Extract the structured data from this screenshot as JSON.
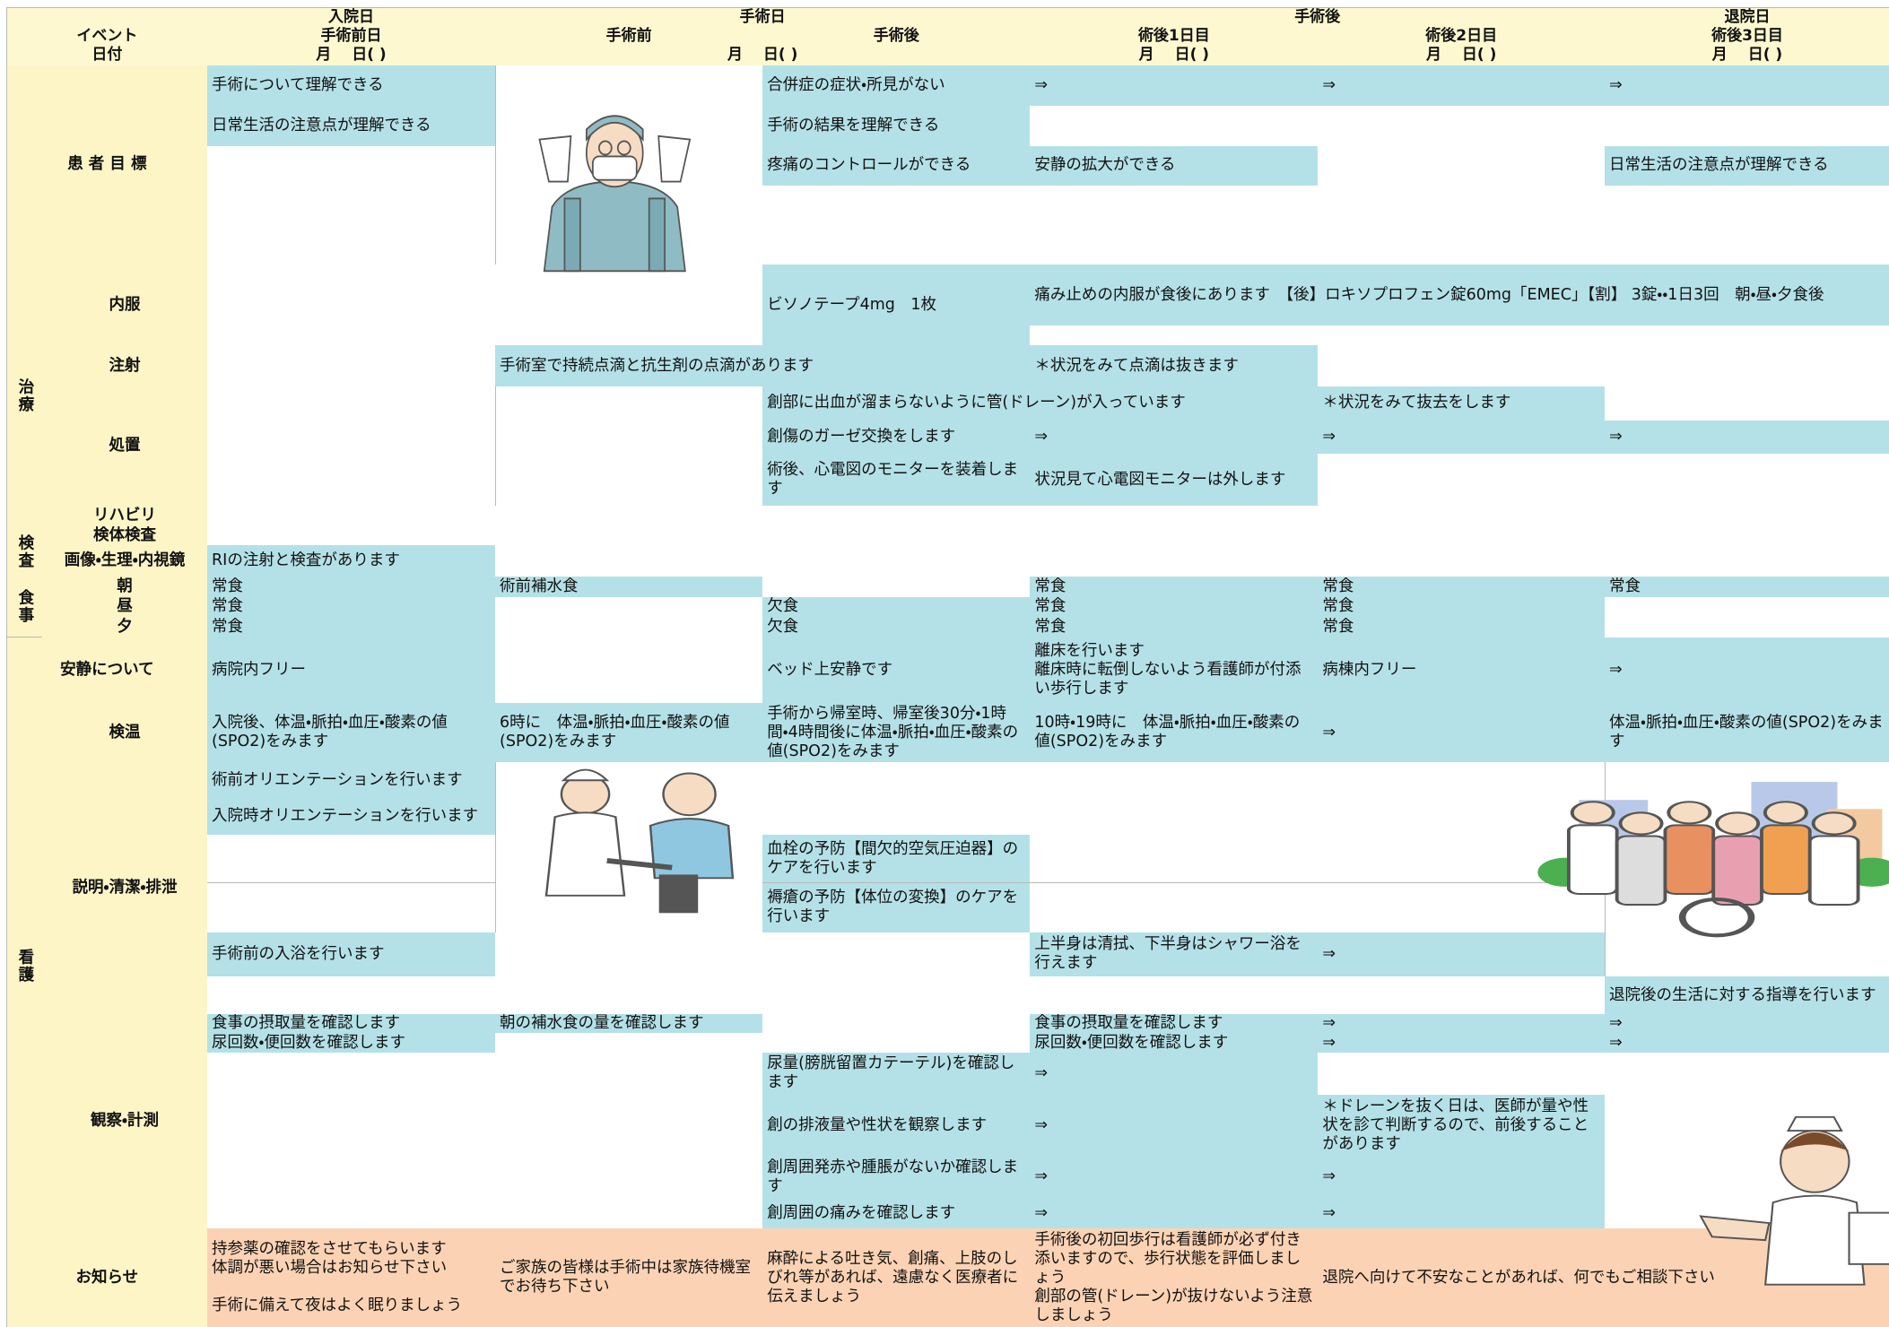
{
  "header": {
    "phases": [
      "入院日",
      "手術日",
      "手術後",
      "退院日"
    ],
    "event_label": "イベント",
    "days": [
      "手術前日",
      "手術前",
      "手術後",
      "術後1日目",
      "術後2日目",
      "術後3日目"
    ],
    "date_label": "日付",
    "dates": [
      "月　 日( )",
      "月　 日( )",
      "月　 日( )",
      "月　 日( )",
      "月　 日( )"
    ]
  },
  "goals": {
    "label": "患 者 目 標",
    "items": [
      "手術について理解できる",
      "日常生活の注意点が理解できる",
      "合併症の症状・所見がない",
      "⇒",
      "⇒",
      "⇒",
      "手術の結果を理解できる",
      "疼痛のコントロールができる",
      "安静の拡大ができる",
      "日常生活の注意点が理解できる"
    ]
  },
  "treatment": {
    "label": "治療",
    "oral": {
      "label": "内服",
      "items": [
        "ビソノテープ4mg　1枚",
        "痛み止めの内服が食後にあります　【後】ロキソプロフェン錠60mg「EMEC」【割】 3錠・・1日3回　朝・昼・夕食後"
      ]
    },
    "injection": {
      "label": "注射",
      "items": [
        "手術室で持続点滴と抗生剤の点滴があります",
        "＊状況をみて点滴は抜きます"
      ]
    },
    "procedure": {
      "label": "処置",
      "items": [
        "創部に出血が溜まらないように管(ドレーン)が入っています",
        "＊状況をみて抜去をします",
        "創傷のガーゼ交換をします",
        "⇒",
        "⇒",
        "⇒",
        "術後、心電図のモニターを装着します",
        "状況見て心電図モニターは外します"
      ]
    },
    "rehab": {
      "label": "リハビリ"
    }
  },
  "exam": {
    "label": "検査",
    "specimen": {
      "label": "検体検査"
    },
    "imaging": {
      "label": "画像・生理・内視鏡",
      "items": [
        "RIの注射と検査があります"
      ]
    }
  },
  "meals": {
    "label": "食事",
    "rows": [
      {
        "label": "朝",
        "items": [
          "常食",
          "術前補水食",
          "常食",
          "常食",
          "常食"
        ]
      },
      {
        "label": "昼",
        "items": [
          "常食",
          "欠食",
          "常食",
          "常食"
        ]
      },
      {
        "label": "夕",
        "items": [
          "常食",
          "欠食",
          "常食",
          "常食"
        ]
      }
    ]
  },
  "rest": {
    "label": "安静について",
    "items": [
      "病院内フリー",
      "ベッド上安静です",
      "離床を行います\n離床時に転倒しないよう看護師が付添い歩行します",
      "病棟内フリー",
      "⇒"
    ]
  },
  "nursing": {
    "label": "看護",
    "vitals": {
      "label": "検温",
      "items": [
        "入院後、体温・脈拍・血圧・酸素の値(SPO2)をみます",
        "6時に　体温・脈拍・血圧・酸素の値(SPO2)をみます",
        "手術から帰室時、帰室後30分・1時間・4時間後に体温・脈拍・血圧・酸素の値(SPO2)をみます",
        "10時・19時に　体温・脈拍・血圧・酸素の値(SPO2)をみます",
        "⇒",
        "体温・脈拍・血圧・酸素の値(SPO2)をみます"
      ]
    },
    "explain": {
      "label": "説明・清潔・排泄",
      "items": [
        "術前オリエンテーションを行います",
        "入院時オリエンテーションを行います",
        "血栓の予防【間欠的空気圧迫器】のケアを行います",
        "褥瘡の予防【体位の変換】のケアを行います",
        "手術前の入浴を行います",
        "上半身は清拭、下半身はシャワー浴を行えます",
        "⇒",
        "退院後の生活に対する指導を行います"
      ]
    },
    "observe": {
      "label": "観察・計測",
      "items": [
        "食事の摂取量を確認します",
        "朝の補水食の量を確認します",
        "食事の摂取量を確認します",
        "⇒",
        "⇒",
        "尿回数・便回数を確認します",
        "尿回数・便回数を確認します",
        "⇒",
        "⇒",
        "尿量(膀胱留置カテーテル)を確認します",
        "⇒",
        "創の排液量や性状を観察します",
        "⇒",
        "＊ドレーンを抜く日は、医師が量や性状を診て判断するので、前後することがあります",
        "創周囲発赤や腫脹がないか確認します",
        "⇒",
        "⇒",
        "創周囲の痛みを確認します",
        "⇒",
        "⇒"
      ]
    }
  },
  "notice": {
    "label": "お知らせ",
    "items": [
      "持参薬の確認をさせてもらいます\n体調が悪い場合はお知らせ下さい\n\n手術に備えて夜はよく眠りましょう",
      "ご家族の皆様は手術中は家族待機室でお待ち下さい",
      "麻酔による吐き気、創痛、上肢のしびれ等があれば、遠慮なく医療者に伝えましょう",
      "手術後の初回歩行は看護師が必ず付き添いますので、歩行状態を評価しましょう\n創部の管(ドレーン)が抜けないよう注意しましょう",
      "退院へ向けて不安なことがあれば、何でもご相談下さい"
    ]
  }
}
